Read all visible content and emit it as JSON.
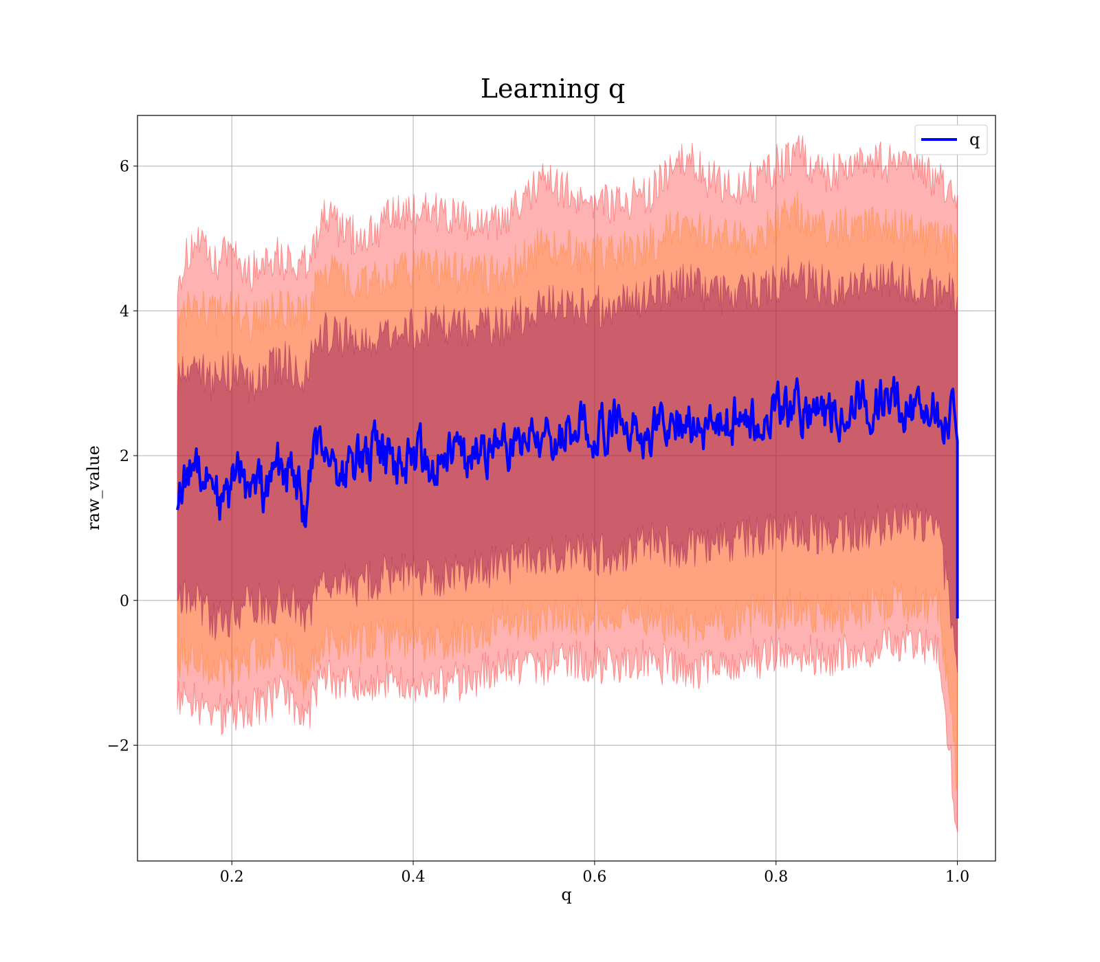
{
  "chart_data": {
    "type": "line",
    "title": "Learning q",
    "xlabel": "q",
    "ylabel": "raw_value",
    "xlim": [
      0.096,
      1.042
    ],
    "ylim": [
      -3.6,
      6.7
    ],
    "xticks": [
      0.2,
      0.4,
      0.6,
      0.8,
      1.0
    ],
    "xtick_labels": [
      "0.2",
      "0.4",
      "0.6",
      "0.8",
      "1.0"
    ],
    "yticks": [
      -2,
      0,
      2,
      4,
      6
    ],
    "ytick_labels": [
      "−2",
      "0",
      "2",
      "4",
      "6"
    ],
    "grid": true,
    "legend_position": "top-right",
    "legend": [
      {
        "label": "q",
        "color": "#0000ff"
      }
    ],
    "series": [
      {
        "name": "q",
        "color": "#0000ff",
        "x": [
          0.14,
          0.15,
          0.16,
          0.17,
          0.18,
          0.19,
          0.2,
          0.21,
          0.22,
          0.23,
          0.24,
          0.25,
          0.26,
          0.27,
          0.28,
          0.29,
          0.3,
          0.32,
          0.34,
          0.36,
          0.38,
          0.4,
          0.42,
          0.44,
          0.46,
          0.48,
          0.5,
          0.52,
          0.54,
          0.56,
          0.58,
          0.6,
          0.62,
          0.64,
          0.66,
          0.68,
          0.7,
          0.72,
          0.74,
          0.76,
          0.78,
          0.8,
          0.82,
          0.84,
          0.86,
          0.88,
          0.9,
          0.92,
          0.94,
          0.96,
          0.98,
          1.0
        ],
        "y": [
          1.52,
          1.6,
          2.1,
          1.7,
          1.75,
          1.2,
          1.55,
          1.9,
          1.35,
          1.6,
          1.45,
          1.85,
          1.7,
          1.8,
          1.15,
          1.9,
          2.25,
          1.75,
          1.95,
          2.05,
          1.8,
          2.05,
          1.9,
          2.15,
          1.85,
          2.1,
          2.05,
          2.2,
          2.35,
          2.25,
          2.45,
          2.35,
          2.4,
          2.5,
          2.3,
          2.45,
          2.55,
          2.35,
          2.45,
          2.5,
          2.45,
          2.65,
          2.7,
          2.55,
          2.6,
          2.7,
          2.65,
          2.75,
          2.7,
          2.65,
          2.6,
          2.5
        ],
        "y_end_drop": -0.25
      }
    ],
    "bands": [
      {
        "name": "",
        "color": "#ff0000",
        "opacity": 0.3,
        "x": [
          0.14,
          0.16,
          0.18,
          0.2,
          0.22,
          0.24,
          0.26,
          0.28,
          0.3,
          0.34,
          0.38,
          0.42,
          0.46,
          0.5,
          0.54,
          0.58,
          0.62,
          0.66,
          0.7,
          0.74,
          0.78,
          0.82,
          0.86,
          0.9,
          0.94,
          0.98,
          1.0
        ],
        "upper": [
          4.45,
          5.0,
          4.6,
          4.9,
          4.5,
          4.8,
          4.7,
          4.6,
          5.3,
          5.0,
          5.3,
          5.4,
          5.2,
          5.2,
          5.8,
          5.6,
          5.5,
          5.6,
          6.1,
          5.7,
          5.8,
          6.2,
          5.9,
          6.1,
          6.0,
          5.8,
          5.6
        ],
        "lower": [
          -1.4,
          -1.4,
          -1.6,
          -1.5,
          -1.5,
          -1.4,
          -1.3,
          -1.7,
          -1.0,
          -1.2,
          -1.1,
          -1.2,
          -1.1,
          -0.9,
          -0.9,
          -0.8,
          -0.9,
          -0.8,
          -1.0,
          -0.9,
          -0.8,
          -0.7,
          -0.8,
          -0.7,
          -0.6,
          -0.7,
          -3.2
        ]
      },
      {
        "name": "",
        "color": "#ff7f0e",
        "opacity": 0.3,
        "x": [
          0.14,
          0.16,
          0.18,
          0.2,
          0.22,
          0.24,
          0.26,
          0.28,
          0.3,
          0.34,
          0.38,
          0.42,
          0.46,
          0.5,
          0.54,
          0.58,
          0.62,
          0.66,
          0.7,
          0.74,
          0.78,
          0.82,
          0.86,
          0.9,
          0.94,
          0.98,
          1.0
        ],
        "upper": [
          3.85,
          4.2,
          3.9,
          4.1,
          3.8,
          4.0,
          4.0,
          3.9,
          4.6,
          4.3,
          4.5,
          4.6,
          4.5,
          4.5,
          4.9,
          4.8,
          4.8,
          4.9,
          5.2,
          5.0,
          5.0,
          5.4,
          5.1,
          5.2,
          5.1,
          5.0,
          4.9
        ],
        "lower": [
          -0.8,
          -0.8,
          -1.0,
          -0.9,
          -0.8,
          -0.8,
          -0.7,
          -1.1,
          -0.5,
          -0.6,
          -0.5,
          -0.6,
          -0.5,
          -0.3,
          -0.3,
          -0.2,
          -0.3,
          -0.2,
          -0.4,
          -0.3,
          -0.2,
          -0.1,
          -0.2,
          -0.1,
          0.0,
          -0.1,
          -2.5
        ]
      },
      {
        "name": "",
        "color": "#8b0a50",
        "opacity": 0.45,
        "x": [
          0.14,
          0.16,
          0.18,
          0.2,
          0.22,
          0.24,
          0.26,
          0.28,
          0.3,
          0.34,
          0.38,
          0.42,
          0.46,
          0.5,
          0.54,
          0.58,
          0.62,
          0.66,
          0.7,
          0.74,
          0.78,
          0.82,
          0.86,
          0.9,
          0.94,
          0.98,
          1.0
        ],
        "upper": [
          3.1,
          3.3,
          3.0,
          3.2,
          3.0,
          3.2,
          3.3,
          3.1,
          3.7,
          3.6,
          3.7,
          3.8,
          3.8,
          3.8,
          4.1,
          4.0,
          4.1,
          4.2,
          4.4,
          4.2,
          4.3,
          4.5,
          4.3,
          4.4,
          4.4,
          4.3,
          4.2
        ],
        "lower": [
          -0.05,
          0.0,
          -0.3,
          -0.2,
          0.0,
          -0.1,
          0.1,
          -0.3,
          0.3,
          0.2,
          0.4,
          0.3,
          0.4,
          0.5,
          0.6,
          0.7,
          0.6,
          0.8,
          0.7,
          0.8,
          0.9,
          1.0,
          0.9,
          1.0,
          1.1,
          1.0,
          -1.0
        ]
      }
    ]
  }
}
